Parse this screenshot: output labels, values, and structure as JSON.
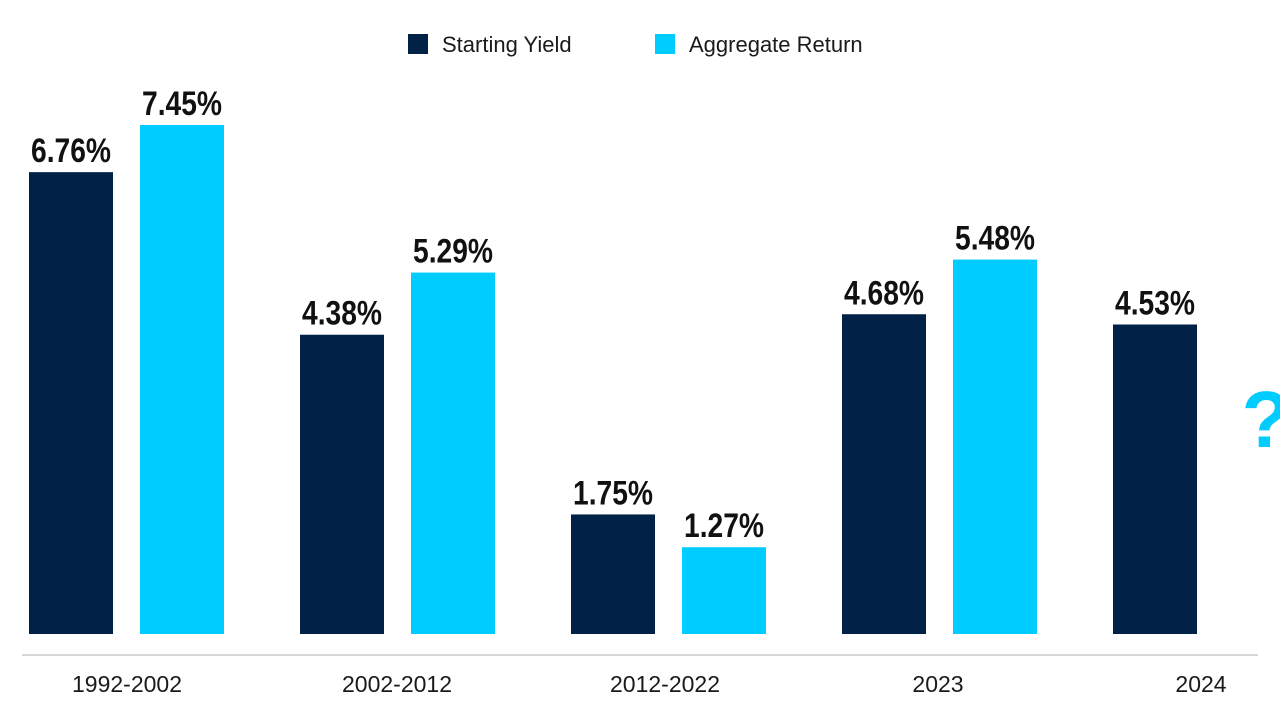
{
  "chart_data": {
    "type": "bar",
    "categories": [
      "1992-2002",
      "2002-2012",
      "2012-2022",
      "2023",
      "2024"
    ],
    "series": [
      {
        "name": "Starting Yield",
        "color": "#012147",
        "values": [
          6.76,
          4.38,
          1.75,
          4.68,
          4.53
        ],
        "labels": [
          "6.76%",
          "4.38%",
          "1.75%",
          "4.68%",
          "4.53%"
        ]
      },
      {
        "name": "Aggregate Return",
        "color": "#00CCFF",
        "values": [
          7.45,
          5.29,
          1.27,
          5.48,
          null
        ],
        "labels": [
          "7.45%",
          "5.29%",
          "1.27%",
          "5.48%",
          "?"
        ]
      }
    ],
    "ylim": [
      0,
      7.45
    ],
    "grid": false,
    "legend": "top-center",
    "baseline_color": "#cccccc"
  }
}
